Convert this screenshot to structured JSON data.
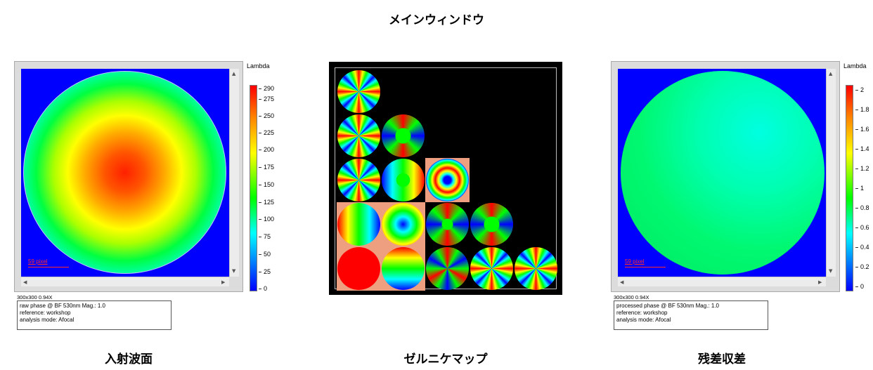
{
  "main_title": "メインウィンドウ",
  "left_panel": {
    "caption": "入射波面",
    "colorbar_title": "Lambda",
    "ticks": [
      "290",
      "275",
      "250",
      "225",
      "200",
      "175",
      "150",
      "125",
      "100",
      "75",
      "50",
      "25",
      "0"
    ],
    "scale_label": "59 pixel",
    "resolution": "300x300 0.94X",
    "info_lines": [
      "raw phase @ BF 530nm Mag.: 1.0",
      "reference: workshop",
      "analysis mode: Afocal"
    ]
  },
  "middle_panel": {
    "caption": "ゼルニケマップ"
  },
  "right_panel": {
    "caption": "残差収差",
    "colorbar_title": "Lambda",
    "ticks": [
      "2",
      "1.8",
      "1.6",
      "1.4",
      "1.2",
      "1",
      "0.8",
      "0.6",
      "0.4",
      "0.2",
      "0"
    ],
    "scale_label": "59 pixel",
    "resolution": "300x300 0.94X",
    "info_lines": [
      "processed phase @ BF 530nm Mag.: 1.0",
      "reference: workshop",
      "analysis mode: Afocal"
    ]
  },
  "colors": {
    "plot_background": "#0000ff",
    "highlight_cell": "#ee9f80",
    "scale_text": "#ff2a2a"
  }
}
